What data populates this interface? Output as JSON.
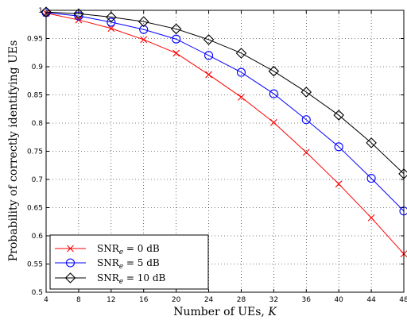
{
  "chart_data": {
    "type": "line",
    "xlabel": "Number of UEs, K",
    "ylabel": "Probability of correctly identifying UEs",
    "xlim": [
      4,
      48
    ],
    "ylim": [
      0.5,
      1
    ],
    "x_ticks": [
      4,
      8,
      12,
      16,
      20,
      24,
      28,
      32,
      36,
      40,
      44,
      48
    ],
    "y_ticks": [
      0.5,
      0.55,
      0.6,
      0.65,
      0.7,
      0.75,
      0.8,
      0.85,
      0.9,
      0.95,
      1
    ],
    "y_tick_labels": [
      "0.5",
      "0.55",
      "0.6",
      "0.65",
      "0.7",
      "0.75",
      "0.8",
      "0.85",
      "0.9",
      "0.95",
      "1"
    ],
    "grid": true,
    "legend_position": "bottom-left",
    "x": [
      4,
      8,
      12,
      16,
      20,
      24,
      28,
      32,
      36,
      40,
      44,
      48
    ],
    "series": [
      {
        "name": "SNRe = 0 dB",
        "label_main": "SNR",
        "label_sub": "e",
        "label_rest": " = 0 dB",
        "color": "#ff0000",
        "marker": "x",
        "values": [
          0.995,
          0.983,
          0.968,
          0.948,
          0.924,
          0.886,
          0.846,
          0.801,
          0.748,
          0.692,
          0.632,
          0.568
        ]
      },
      {
        "name": "SNRe = 5 dB",
        "label_main": "SNR",
        "label_sub": "e",
        "label_rest": " = 5 dB",
        "color": "#0000ff",
        "marker": "circle",
        "values": [
          0.996,
          0.99,
          0.979,
          0.966,
          0.949,
          0.92,
          0.89,
          0.852,
          0.806,
          0.758,
          0.702,
          0.644
        ]
      },
      {
        "name": "SNRe = 10 dB",
        "label_main": "SNR",
        "label_sub": "e",
        "label_rest": " = 10 dB",
        "color": "#000000",
        "marker": "diamond",
        "values": [
          0.997,
          0.994,
          0.988,
          0.98,
          0.967,
          0.948,
          0.924,
          0.892,
          0.855,
          0.814,
          0.765,
          0.71
        ]
      }
    ]
  }
}
